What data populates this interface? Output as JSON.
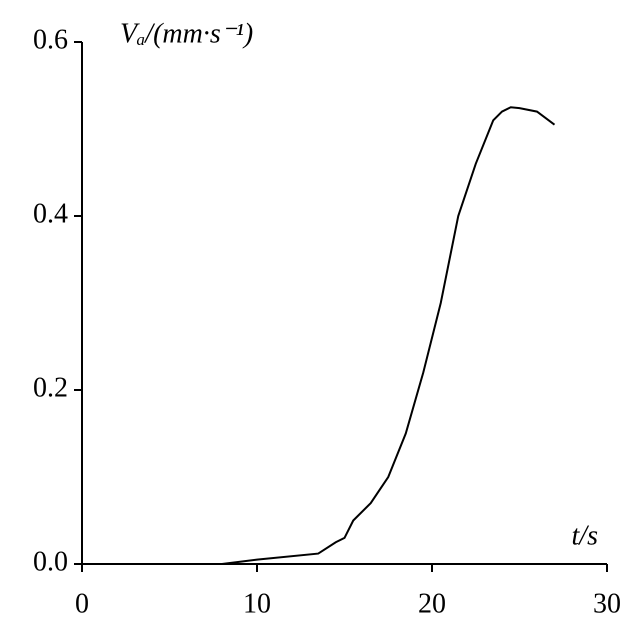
{
  "chart_data": {
    "type": "line",
    "ylabel": "Vₐ/(mm·s⁻¹)",
    "xlabel": "t/s",
    "x": [
      0,
      8,
      10,
      13.5,
      14.5,
      15,
      15.5,
      16.5,
      17.5,
      18.5,
      19.5,
      20.5,
      21.5,
      22.5,
      23.5,
      24,
      24.5,
      25,
      26,
      27
    ],
    "series": [
      {
        "color": "#000000",
        "values": [
          0,
          0,
          0.005,
          0.012,
          0.025,
          0.03,
          0.05,
          0.07,
          0.1,
          0.15,
          0.22,
          0.3,
          0.4,
          0.46,
          0.51,
          0.52,
          0.525,
          0.524,
          0.52,
          0.505
        ]
      }
    ],
    "xlim": [
      0,
      30
    ],
    "xticks": [
      0,
      10,
      20,
      30
    ],
    "ylim": [
      0,
      0.6
    ],
    "yticks": [
      {
        "value": 0,
        "label": "0.0"
      },
      0.2,
      0.4,
      0.6
    ]
  }
}
